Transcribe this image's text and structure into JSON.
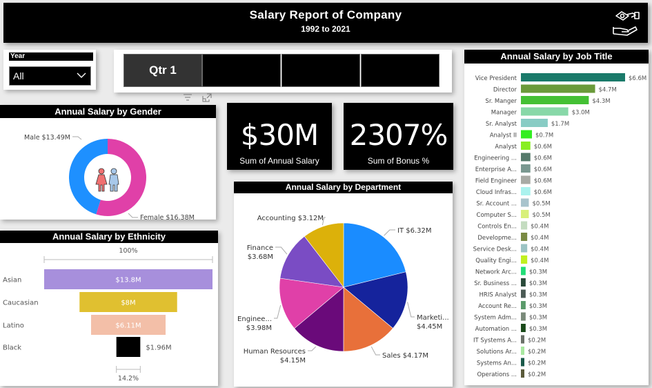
{
  "header": {
    "title": "Salary Report of Company",
    "subtitle": "1992 to 2021",
    "icon": "handshake-money-icon"
  },
  "year_slicer": {
    "label": "Year",
    "selected": "All"
  },
  "quarter_slicer": {
    "options": [
      "Qtr 1",
      "",
      "",
      ""
    ],
    "selected_index": 0
  },
  "kpis": [
    {
      "value": "$30M",
      "label": "Sum of Annual Salary"
    },
    {
      "value": "2307%",
      "label": "Sum of Bonus %"
    }
  ],
  "colors": {
    "male": "#1e90ff",
    "female": "#e040a8",
    "header_bg": "#000000"
  },
  "chart_data": [
    {
      "type": "pie",
      "variant": "donut",
      "title": "Annual Salary by Gender",
      "categories": [
        "Male",
        "Female"
      ],
      "values": [
        13.49,
        16.38
      ],
      "unit": "$M",
      "labels": [
        "Male $13.49M",
        "Female $16.38M"
      ],
      "colors": [
        "#1e90ff",
        "#e040a8"
      ]
    },
    {
      "type": "pie",
      "title": "Annual Salary by Department",
      "categories": [
        "IT",
        "Marketing",
        "Sales",
        "Human Resources",
        "Engineering",
        "Finance",
        "Accounting"
      ],
      "values": [
        6.32,
        4.45,
        4.17,
        4.15,
        3.98,
        3.68,
        3.12
      ],
      "unit": "$M",
      "labels": [
        "IT $6.32M",
        "Marketi... $4.45M",
        "Sales $4.17M",
        "Human Resources $4.15M",
        "Enginee... $3.98M",
        "Finance $3.68M",
        "Accounting $3.12M"
      ],
      "label_lines": [
        [
          "IT $6.32M"
        ],
        [
          "Marketi...",
          "$4.45M"
        ],
        [
          "Sales $4.17M"
        ],
        [
          "Human Resources",
          "$4.15M"
        ],
        [
          "Enginee...",
          "$3.98M"
        ],
        [
          "Finance",
          "$3.68M"
        ],
        [
          "Accounting $3.12M"
        ]
      ],
      "colors": [
        "#1a8cff",
        "#15239c",
        "#e8703a",
        "#6a0a7a",
        "#e040a8",
        "#7a4cc4",
        "#dcb10a"
      ]
    },
    {
      "type": "bar",
      "variant": "funnel",
      "title": "Annual Salary by Ethnicity",
      "categories": [
        "Asian",
        "Caucasian",
        "Latino",
        "Black"
      ],
      "values": [
        13.8,
        8,
        6.11,
        1.96
      ],
      "unit": "$M",
      "value_labels": [
        "$13.8M",
        "$8M",
        "$6.11M",
        "$1.96M"
      ],
      "colors": [
        "#a78fdc",
        "#e0c030",
        "#f3bfa8",
        "#000000"
      ],
      "top_annotation": "100%",
      "bottom_annotation": "14.2%"
    },
    {
      "type": "bar",
      "orientation": "horizontal",
      "title": "Annual Salary by Job Title",
      "categories": [
        "Vice President",
        "Director",
        "Sr. Manger",
        "Manager",
        "Sr. Analyst",
        "Analyst II",
        "Analyst",
        "Engineering ...",
        "Enterprise A...",
        "Field Engineer",
        "Cloud Infras...",
        "Sr. Account ...",
        "Computer S...",
        "Controls En...",
        "Developme...",
        "Service Desk...",
        "Quality Engi...",
        "Network Arc...",
        "Sr. Business ...",
        "HRIS Analyst",
        "Account Re...",
        "System Adm...",
        "Automation ...",
        "IT Systems A...",
        "Solutions Ar...",
        "Systems An...",
        "Operations ..."
      ],
      "values": [
        6.6,
        4.7,
        4.3,
        3.0,
        1.7,
        0.7,
        0.6,
        0.6,
        0.6,
        0.6,
        0.6,
        0.5,
        0.5,
        0.4,
        0.4,
        0.4,
        0.4,
        0.3,
        0.3,
        0.3,
        0.3,
        0.3,
        0.3,
        0.2,
        0.2,
        0.2,
        0.2
      ],
      "value_labels": [
        "$6.6M",
        "$4.7M",
        "$4.3M",
        "$3.0M",
        "$1.7M",
        "$0.7M",
        "$0.6M",
        "$0.6M",
        "$0.6M",
        "$0.6M",
        "$0.6M",
        "$0.5M",
        "$0.5M",
        "$0.4M",
        "$0.4M",
        "$0.4M",
        "$0.4M",
        "$0.3M",
        "$0.3M",
        "$0.3M",
        "$0.3M",
        "$0.3M",
        "$0.3M",
        "$0.2M",
        "$0.2M",
        "$0.2M",
        "$0.2M"
      ],
      "colors": [
        "#1a7a6a",
        "#6a9a3a",
        "#44c034",
        "#88d8a8",
        "#88ccc4",
        "#33ee22",
        "#88ee22",
        "#557a6a",
        "#7a9890",
        "#a8aaa4",
        "#aaf2ee",
        "#a8c4cc",
        "#d8f07a",
        "#c4dcc0",
        "#7a8a44",
        "#9cc4c4",
        "#c0f020",
        "#22dd77",
        "#2a4a3a",
        "#4a5a54",
        "#5a9a6a",
        "#7a8a7a",
        "#1a4a1a",
        "#6a7068",
        "#a8e8a0",
        "#1a5a4a",
        "#5a5a3a"
      ],
      "unit": "$M",
      "xlim": [
        0,
        6.6
      ]
    }
  ]
}
